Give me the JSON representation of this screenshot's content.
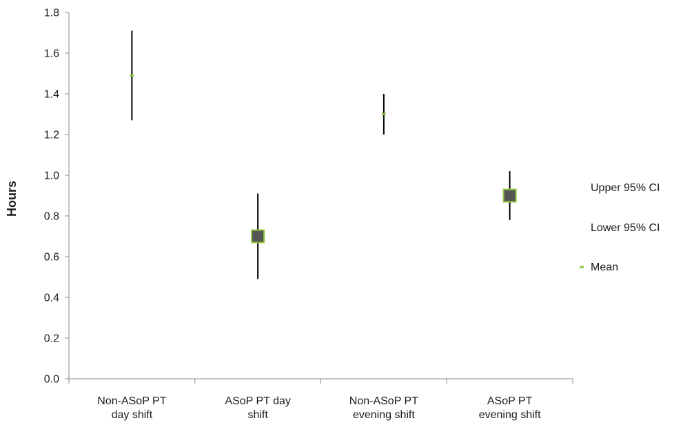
{
  "chart_data": {
    "type": "scatter",
    "title": "",
    "xlabel": "",
    "ylabel": "Hours",
    "ylim": [
      0,
      1.8
    ],
    "yticks": [
      "0.0",
      "0.2",
      "0.4",
      "0.6",
      "0.8",
      "1.0",
      "1.2",
      "1.4",
      "1.6",
      "1.8"
    ],
    "categories": [
      [
        "Non-ASoP PT",
        "day shift"
      ],
      [
        "ASoP PT day",
        "shift"
      ],
      [
        "Non-ASoP PT",
        "evening shift"
      ],
      [
        "ASoP PT",
        "evening shift"
      ]
    ],
    "series": [
      {
        "name": "Upper 95% CI",
        "values": [
          1.71,
          0.91,
          1.4,
          1.02
        ]
      },
      {
        "name": "Lower 95% CI",
        "values": [
          1.27,
          0.49,
          1.2,
          0.78
        ]
      },
      {
        "name": "Mean",
        "values": [
          1.49,
          0.7,
          1.3,
          0.9
        ]
      }
    ],
    "box_marker_categories": [
      1,
      3
    ],
    "grid": false,
    "legend_position": "right",
    "colors": {
      "mean": "#8dc641",
      "box_fill": "#555555",
      "ci_line": "#000000",
      "axis": "#888888"
    }
  }
}
